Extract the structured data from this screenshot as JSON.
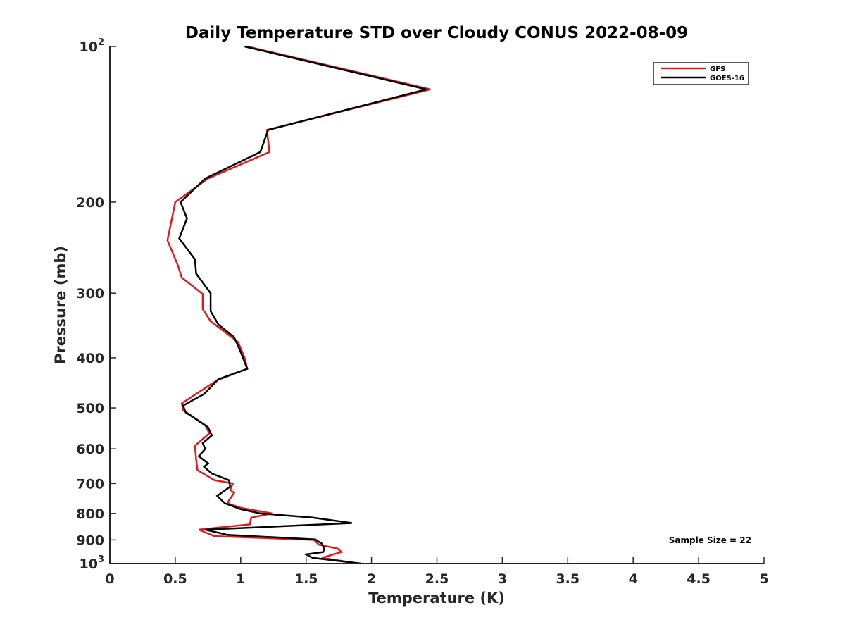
{
  "chart_data": {
    "type": "line",
    "title": "Daily Temperature STD over Cloudy CONUS 2022-08-09",
    "xlabel": "Temperature (K)",
    "ylabel": "Pressure (mb)",
    "xlim": [
      0,
      5
    ],
    "ylim": [
      100,
      1000
    ],
    "y_scale": "log",
    "y_reversed": true,
    "x_ticks": [
      {
        "value": 0,
        "label": "0"
      },
      {
        "value": 0.5,
        "label": "0.5"
      },
      {
        "value": 1,
        "label": "1"
      },
      {
        "value": 1.5,
        "label": "1.5"
      },
      {
        "value": 2,
        "label": "2"
      },
      {
        "value": 2.5,
        "label": "2.5"
      },
      {
        "value": 3,
        "label": "3"
      },
      {
        "value": 3.5,
        "label": "3.5"
      },
      {
        "value": 4,
        "label": "4"
      },
      {
        "value": 4.5,
        "label": "4.5"
      },
      {
        "value": 5,
        "label": "5"
      }
    ],
    "y_ticks": [
      {
        "value": 100,
        "base": "10",
        "exp": "2"
      },
      {
        "value": 200,
        "label": "200"
      },
      {
        "value": 300,
        "label": "300"
      },
      {
        "value": 400,
        "label": "400"
      },
      {
        "value": 500,
        "label": "500"
      },
      {
        "value": 600,
        "label": "600"
      },
      {
        "value": 700,
        "label": "700"
      },
      {
        "value": 800,
        "label": "800"
      },
      {
        "value": 900,
        "label": "900"
      },
      {
        "value": 1000,
        "base": "10",
        "exp": "3"
      }
    ],
    "grid": false,
    "legend_position": "top-right",
    "annotation": "Sample Size = 22",
    "series": [
      {
        "name": "GFS",
        "color": "#e31a1c",
        "points": [
          [
            1.05,
            100
          ],
          [
            2.45,
            121
          ],
          [
            1.2,
            145
          ],
          [
            1.22,
            160
          ],
          [
            0.75,
            180
          ],
          [
            0.5,
            200
          ],
          [
            0.44,
            237
          ],
          [
            0.52,
            265
          ],
          [
            0.55,
            280
          ],
          [
            0.71,
            301
          ],
          [
            0.71,
            322
          ],
          [
            0.77,
            340
          ],
          [
            0.98,
            373
          ],
          [
            1.03,
            400
          ],
          [
            1.05,
            420
          ],
          [
            0.82,
            442
          ],
          [
            0.55,
            490
          ],
          [
            0.56,
            505
          ],
          [
            0.73,
            540
          ],
          [
            0.76,
            560
          ],
          [
            0.65,
            592
          ],
          [
            0.66,
            630
          ],
          [
            0.67,
            660
          ],
          [
            0.8,
            690
          ],
          [
            0.94,
            700
          ],
          [
            0.92,
            720
          ],
          [
            0.95,
            730
          ],
          [
            0.91,
            755
          ],
          [
            0.9,
            765
          ],
          [
            1.0,
            780
          ],
          [
            1.24,
            800
          ],
          [
            1.08,
            815
          ],
          [
            1.07,
            840
          ],
          [
            0.68,
            860
          ],
          [
            0.8,
            885
          ],
          [
            1.56,
            900
          ],
          [
            1.6,
            920
          ],
          [
            1.74,
            935
          ],
          [
            1.77,
            950
          ],
          [
            1.62,
            975
          ],
          [
            1.9,
            1000
          ]
        ]
      },
      {
        "name": "GOES-16",
        "color": "#000000",
        "points": [
          [
            1.03,
            100
          ],
          [
            2.42,
            121
          ],
          [
            1.21,
            145
          ],
          [
            1.15,
            160
          ],
          [
            0.73,
            180
          ],
          [
            0.54,
            200
          ],
          [
            0.59,
            215
          ],
          [
            0.53,
            235
          ],
          [
            0.65,
            258
          ],
          [
            0.66,
            275
          ],
          [
            0.77,
            300
          ],
          [
            0.77,
            325
          ],
          [
            0.83,
            345
          ],
          [
            0.95,
            365
          ],
          [
            1.0,
            390
          ],
          [
            1.05,
            420
          ],
          [
            0.83,
            440
          ],
          [
            0.72,
            470
          ],
          [
            0.56,
            495
          ],
          [
            0.58,
            510
          ],
          [
            0.75,
            545
          ],
          [
            0.78,
            565
          ],
          [
            0.71,
            585
          ],
          [
            0.73,
            600
          ],
          [
            0.68,
            620
          ],
          [
            0.75,
            640
          ],
          [
            0.72,
            650
          ],
          [
            0.78,
            670
          ],
          [
            0.91,
            690
          ],
          [
            0.92,
            710
          ],
          [
            0.82,
            740
          ],
          [
            0.88,
            765
          ],
          [
            1.0,
            785
          ],
          [
            1.15,
            800
          ],
          [
            1.55,
            815
          ],
          [
            1.85,
            835
          ],
          [
            0.73,
            860
          ],
          [
            0.9,
            880
          ],
          [
            1.57,
            898
          ],
          [
            1.62,
            915
          ],
          [
            1.64,
            935
          ],
          [
            1.63,
            950
          ],
          [
            1.5,
            960
          ],
          [
            1.55,
            975
          ],
          [
            1.92,
            1000
          ]
        ]
      }
    ]
  }
}
